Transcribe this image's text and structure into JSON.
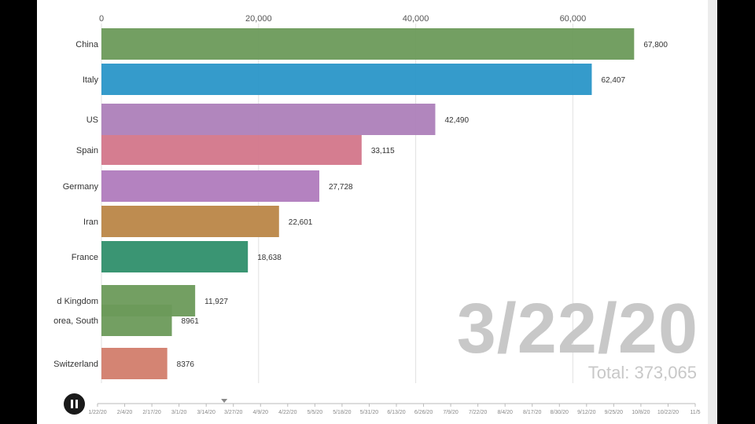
{
  "chart_data": {
    "type": "bar",
    "orientation": "horizontal",
    "categories": [
      "China",
      "Italy",
      "US",
      "Spain",
      "Germany",
      "Iran",
      "France",
      "United Kingdom",
      "Korea, South",
      "Switzerland"
    ],
    "display_categories": [
      "China",
      "Italy",
      "US",
      "Spain",
      "Germany",
      "Iran",
      "France",
      "d Kingdom",
      "orea, South",
      "Switzerland"
    ],
    "values": [
      67800,
      62407,
      42490,
      33115,
      27728,
      22601,
      18638,
      11927,
      8961,
      8376
    ],
    "value_labels": [
      "67,800",
      "62,407",
      "42,490",
      "33,115",
      "27,728",
      "22,601",
      "18,638",
      "11,927",
      "8961",
      "8376"
    ],
    "colors": [
      "#6b9a5a",
      "#2a96c8",
      "#ad7fb9",
      "#d3768a",
      "#b07bbd",
      "#bb8647",
      "#2f8f6c",
      "#6b9a5a",
      "#6b9a5a",
      "#d27d6c"
    ],
    "xlim": [
      0,
      70000
    ],
    "xticks": [
      0,
      20000,
      40000,
      60000
    ],
    "xtick_labels": [
      "0",
      "20,000",
      "40,000",
      "60,000"
    ],
    "grid": true,
    "date": "3/22/20",
    "total": "Total: 373,065"
  },
  "timeline": {
    "labels": [
      "1/22/20",
      "2/4/20",
      "2/17/20",
      "3/1/20",
      "3/14/20",
      "3/27/20",
      "4/9/20",
      "4/22/20",
      "5/5/20",
      "5/18/20",
      "5/31/20",
      "6/13/20",
      "6/26/20",
      "7/9/20",
      "7/22/20",
      "8/4/20",
      "8/17/20",
      "8/30/20",
      "9/12/20",
      "9/25/20",
      "10/8/20",
      "10/22/20",
      "11/5"
    ],
    "current": "3/22/20",
    "position": 0.212
  },
  "controls": {
    "play_state": "playing",
    "pause_icon": "pause-icon"
  }
}
